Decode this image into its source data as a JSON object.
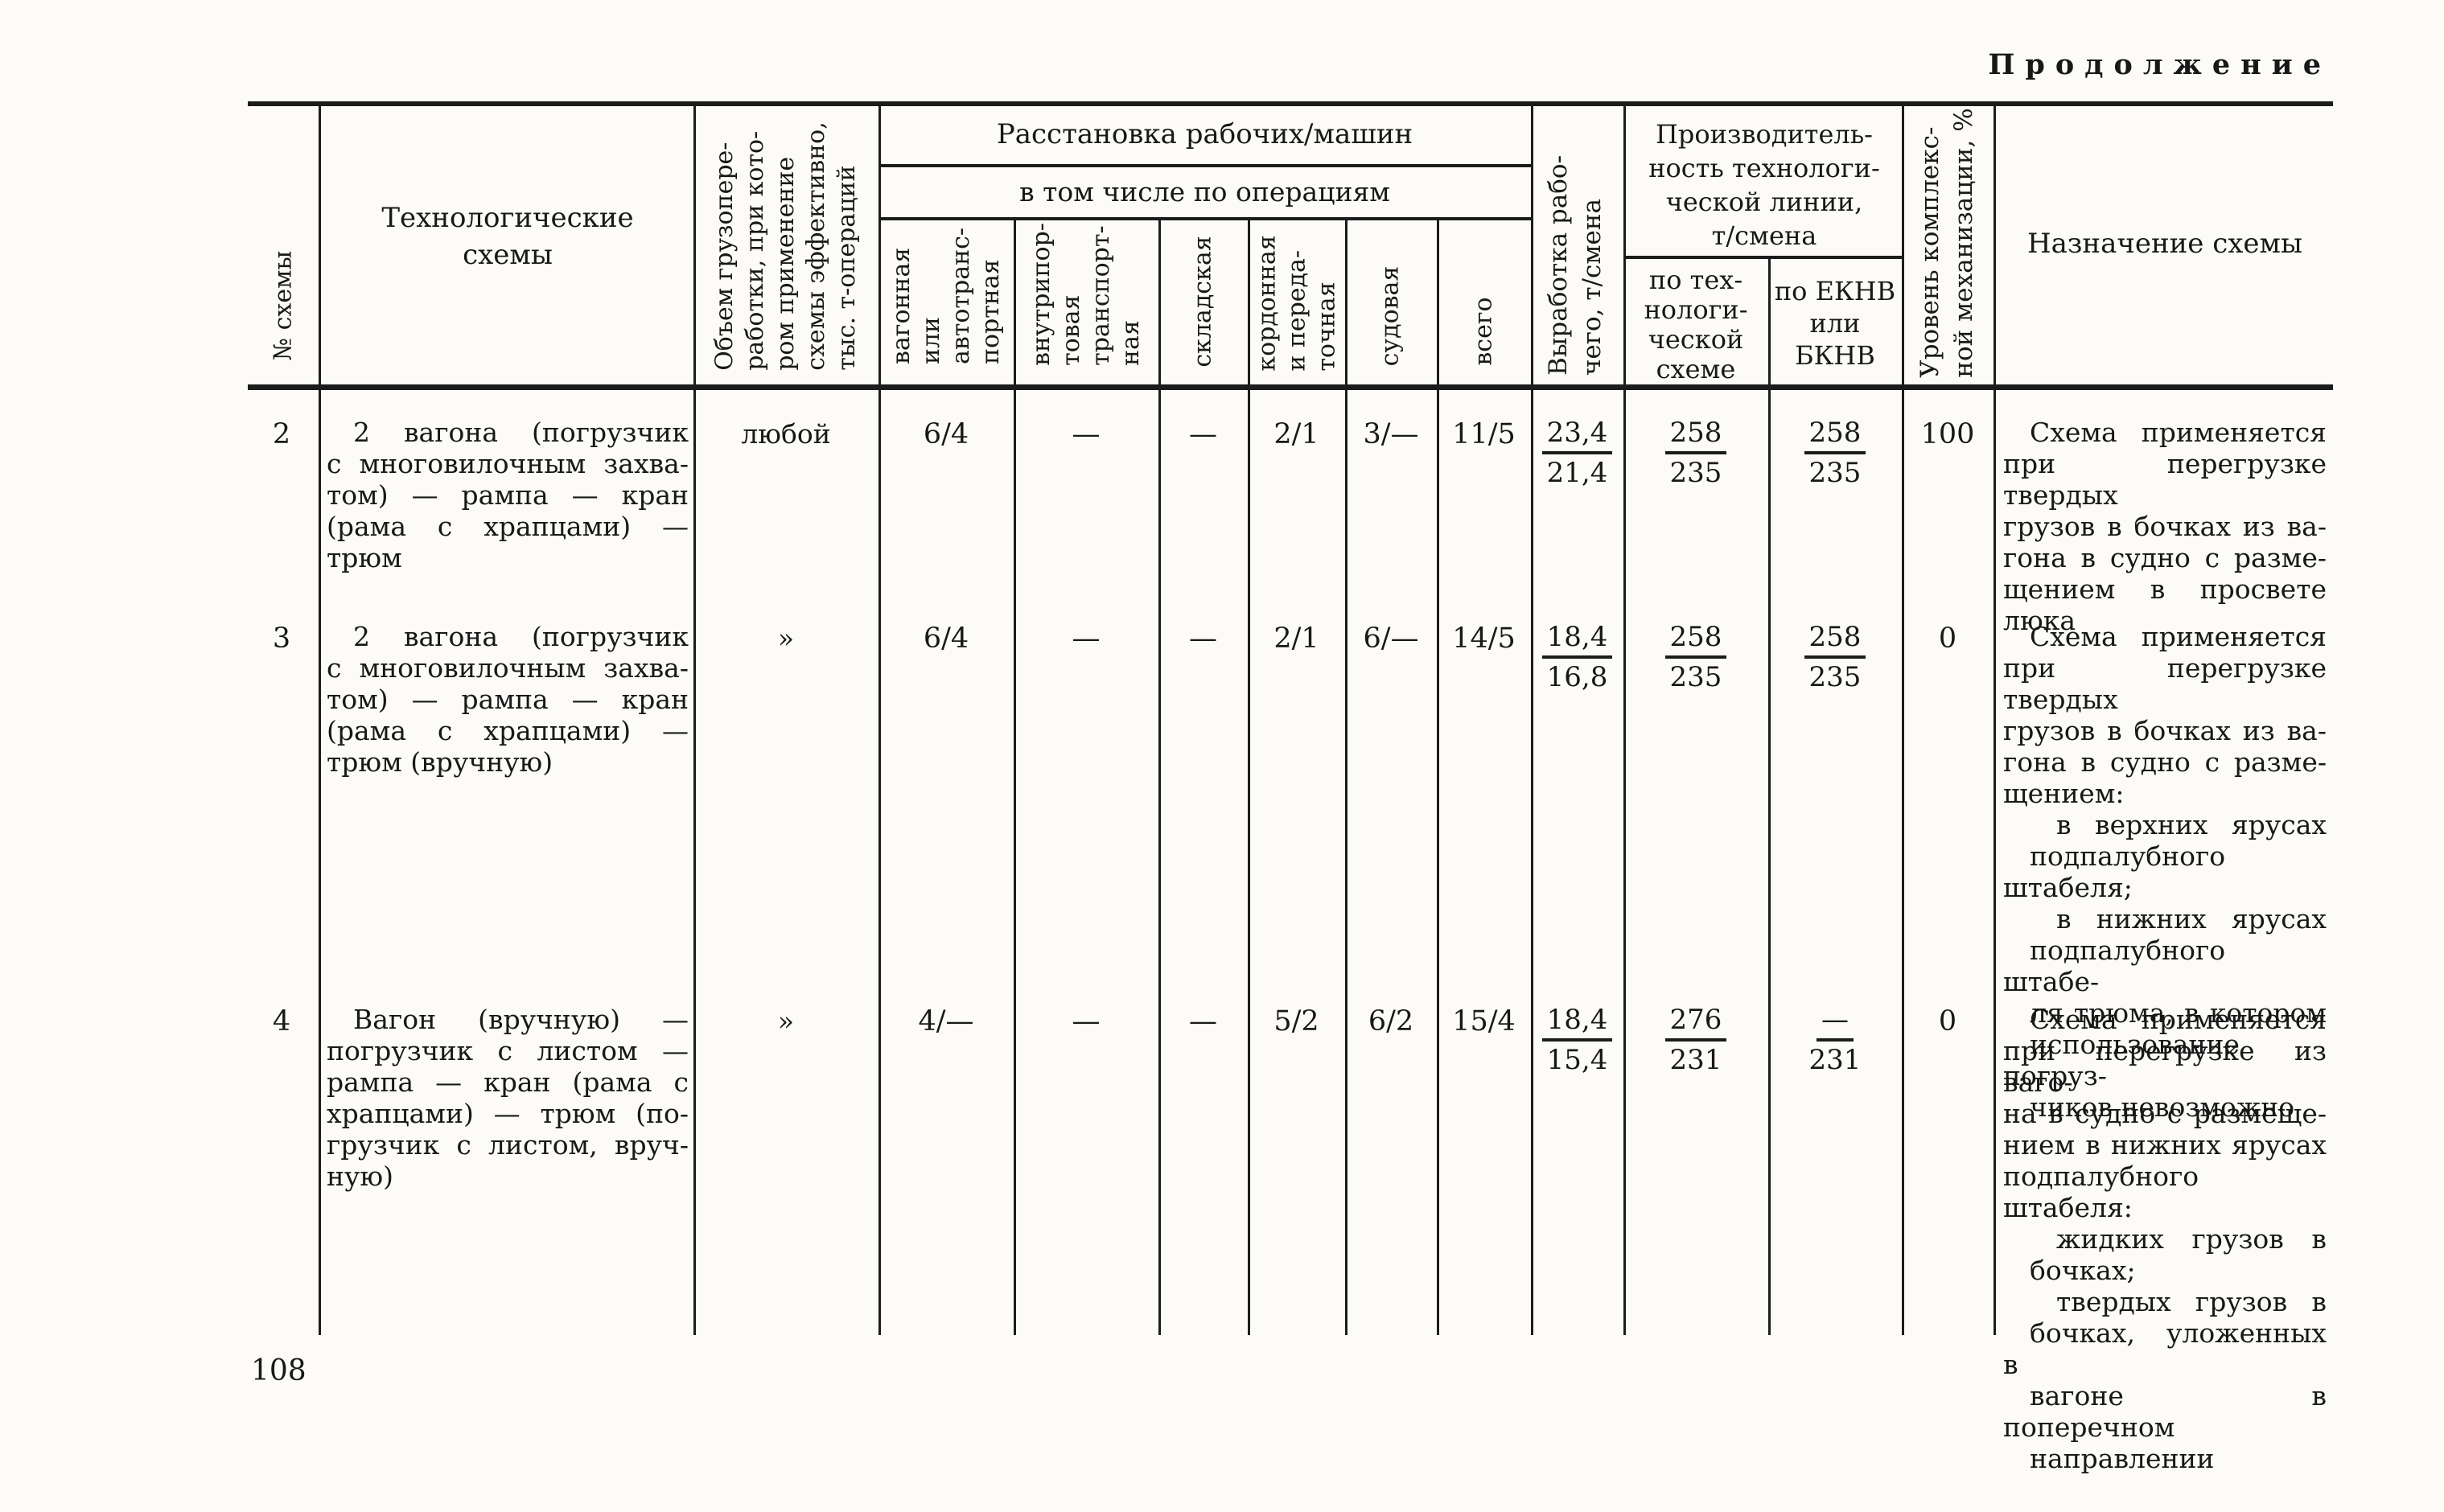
{
  "page": {
    "continuation_label": "Продолжение",
    "page_number": "108",
    "ink_color": "#1c1c1c",
    "paper_color": "#fcfbf7"
  },
  "table": {
    "headers": {
      "scheme_no": "№ схемы",
      "tech_schemes": "Технологические\nсхемы",
      "volume": "Объем грузопере-\nработки, при кото-\nром применение\nсхемы эффективно,\nтыс. т-операций",
      "placement_group": "Расстановка рабочих/машин",
      "by_operations": "в том числе по операциям",
      "op_wagon": "вагонная\nили\nавтотранс-\nпортная",
      "op_inport": "внутрипор-\nтовая\nтранспорт-\nная",
      "op_warehouse": "складская",
      "op_cordon": "кордонная\nи переда-\nточная",
      "op_ship": "судовая",
      "op_total": "всего",
      "output_per_worker": "Выработка рабо-\nчего, т/смена",
      "productivity_group": "Производитель-\nность технологи-\nческой линии,\nт/смена",
      "prod_tech": "по тех-\nнологи-\nческой\nсхеме",
      "prod_eknv": "по ЕКНВ\nили\nБКНВ",
      "mech_level": "Уровень комплекс-\nной механизации, %",
      "purpose": "Назначение схемы"
    },
    "rows": [
      {
        "no": "2",
        "scheme_lines": " 2 вагона (погрузчик\nс многовилочным захва-\nтом) — рампа — кран\n(рама с храпцами) —\nтрюм",
        "volume": "любой",
        "ops": {
          "wagon": "6/4",
          "inport": "—",
          "warehouse": "—",
          "cordon": "2/1",
          "ship": "3/—",
          "total": "11/5"
        },
        "output": {
          "num": "23,4",
          "den": "21,4"
        },
        "prod_tech": {
          "num": "258",
          "den": "235"
        },
        "prod_eknv": {
          "num": "258",
          "den": "235"
        },
        "mech": "100",
        "purpose_lines": " Схема применяется\nпри перегрузке твердых\nгрузов в бочках из ва-\nгона в судно с разме-\nщением в просвете\nлюка"
      },
      {
        "no": "3",
        "scheme_lines": " 2 вагона (погрузчик\nс многовилочным захва-\nтом) — рампа — кран\n(рама с храпцами) —\nтрюм (вручную)",
        "volume": "»",
        "ops": {
          "wagon": "6/4",
          "inport": "—",
          "warehouse": "—",
          "cordon": "2/1",
          "ship": "6/—",
          "total": "14/5"
        },
        "output": {
          "num": "18,4",
          "den": "16,8"
        },
        "prod_tech": {
          "num": "258",
          "den": "235"
        },
        "prod_eknv": {
          "num": "258",
          "den": "235"
        },
        "mech": "0",
        "purpose_lines": " Схема применяется\nпри перегрузке твердых\nгрузов в бочках из ва-\nгона в судно с разме-\nщением:\n  в верхних ярусах\n подпалубного штабеля;\n  в нижних ярусах\n подпалубного штабе-\n ля трюма, в котором\n использование погруз-\n чиков невозможно"
      },
      {
        "no": "4",
        "scheme_lines": " Вагон (вручную) —\nпогрузчик с листом —\nрампа — кран (рама с\nхрапцами) — трюм (по-\nгрузчик с листом, вруч-\nную)",
        "volume": "»",
        "ops": {
          "wagon": "4/—",
          "inport": "—",
          "warehouse": "—",
          "cordon": "5/2",
          "ship": "6/2",
          "total": "15/4"
        },
        "output": {
          "num": "18,4",
          "den": "15,4"
        },
        "prod_tech": {
          "num": "276",
          "den": "231"
        },
        "prod_eknv": {
          "num": "—",
          "den": "231"
        },
        "mech": "0",
        "purpose_lines": " Схема применяется\nпри перегрузке из ваго-\nна в судно с размеще-\nнием в нижних ярусах\nподпалубного штабеля:\n  жидких грузов в\n бочках;\n  твердых грузов в\n бочках, уложенных в\n вагоне в поперечном\n направлении"
      }
    ]
  }
}
